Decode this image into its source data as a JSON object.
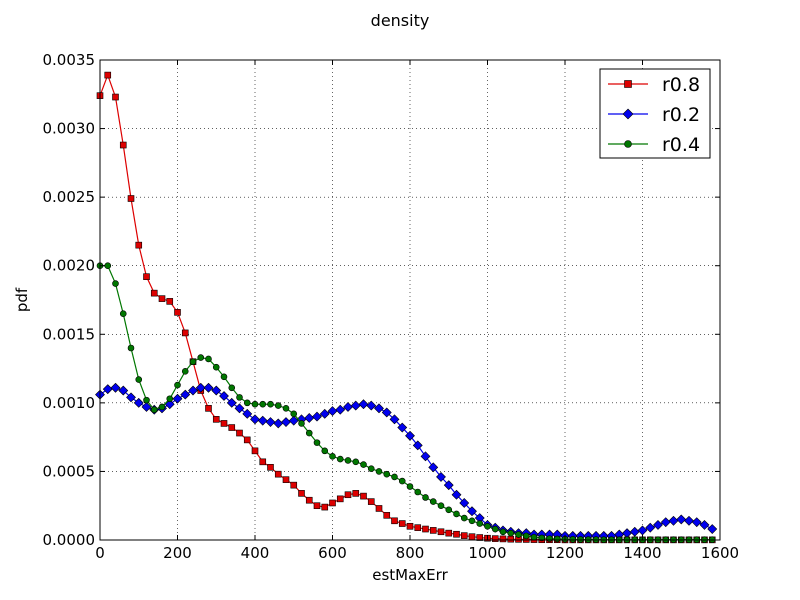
{
  "chart_data": {
    "type": "line",
    "title": "density",
    "xlabel": "estMaxErr",
    "ylabel": "pdf",
    "xlim": [
      0,
      1600
    ],
    "ylim": [
      0,
      0.0035
    ],
    "xticks": [
      0,
      200,
      400,
      600,
      800,
      1000,
      1200,
      1400,
      1600
    ],
    "xtick_labels": [
      "0",
      "200",
      "400",
      "600",
      "800",
      "1000",
      "1200",
      "1400",
      "1600"
    ],
    "yticks": [
      0,
      0.0005,
      0.001,
      0.0015,
      0.002,
      0.0025,
      0.003,
      0.0035
    ],
    "ytick_labels": [
      "0.0000",
      "0.0005",
      "0.0010",
      "0.0015",
      "0.0020",
      "0.0025",
      "0.0030",
      "0.0035"
    ],
    "grid": true,
    "legend_position": "top-right",
    "series": [
      {
        "name": "r0.8",
        "color": "#dd0000",
        "marker": "square",
        "x": [
          0,
          20,
          40,
          60,
          80,
          100,
          120,
          140,
          160,
          180,
          200,
          220,
          240,
          260,
          280,
          300,
          320,
          340,
          360,
          380,
          400,
          420,
          440,
          460,
          480,
          500,
          520,
          540,
          560,
          580,
          600,
          620,
          640,
          660,
          680,
          700,
          720,
          740,
          760,
          780,
          800,
          820,
          840,
          860,
          880,
          900,
          920,
          940,
          960,
          980,
          1000,
          1020,
          1040,
          1060,
          1080,
          1100,
          1120,
          1140,
          1160,
          1180,
          1200,
          1220,
          1240,
          1260,
          1280,
          1300,
          1320,
          1340,
          1360,
          1380,
          1400,
          1420,
          1440,
          1460,
          1480,
          1500,
          1520,
          1540,
          1560,
          1580
        ],
        "y": [
          0.00324,
          0.00339,
          0.00323,
          0.00288,
          0.00249,
          0.00215,
          0.00192,
          0.0018,
          0.00176,
          0.00174,
          0.00166,
          0.00151,
          0.0013,
          0.00109,
          0.00096,
          0.00088,
          0.00085,
          0.00082,
          0.00078,
          0.00073,
          0.00065,
          0.00057,
          0.00053,
          0.00048,
          0.00044,
          0.0004,
          0.00034,
          0.00029,
          0.00025,
          0.00024,
          0.00027,
          0.0003,
          0.00033,
          0.00034,
          0.00032,
          0.00028,
          0.00023,
          0.00018,
          0.00014,
          0.00012,
          0.0001,
          9e-05,
          8e-05,
          7e-05,
          6e-05,
          5e-05,
          4.2e-05,
          3.2e-05,
          2.4e-05,
          1.8e-05,
          1.3e-05,
          1e-05,
          8e-06,
          6e-06,
          5e-06,
          4e-06,
          3e-06,
          2e-06,
          2e-06,
          2e-06,
          1e-06,
          1e-06,
          1e-06,
          1e-06,
          1e-06,
          1e-06,
          1e-06,
          1e-06,
          1e-06,
          1e-06,
          1e-06,
          1e-06,
          1e-06,
          1e-06,
          1e-06,
          1e-06,
          1e-06,
          1e-06,
          1e-06,
          1e-06
        ]
      },
      {
        "name": "r0.2",
        "color": "#0000ee",
        "marker": "diamond",
        "x": [
          0,
          20,
          40,
          60,
          80,
          100,
          120,
          140,
          160,
          180,
          200,
          220,
          240,
          260,
          280,
          300,
          320,
          340,
          360,
          380,
          400,
          420,
          440,
          460,
          480,
          500,
          520,
          540,
          560,
          580,
          600,
          620,
          640,
          660,
          680,
          700,
          720,
          740,
          760,
          780,
          800,
          820,
          840,
          860,
          880,
          900,
          920,
          940,
          960,
          980,
          1000,
          1020,
          1040,
          1060,
          1080,
          1100,
          1120,
          1140,
          1160,
          1180,
          1200,
          1220,
          1240,
          1260,
          1280,
          1300,
          1320,
          1340,
          1360,
          1380,
          1400,
          1420,
          1440,
          1460,
          1480,
          1500,
          1520,
          1540,
          1560,
          1580
        ],
        "y": [
          0.00106,
          0.0011,
          0.00111,
          0.00109,
          0.00104,
          0.001,
          0.00097,
          0.00095,
          0.00096,
          0.00099,
          0.00103,
          0.00106,
          0.00109,
          0.00111,
          0.00111,
          0.00109,
          0.00105,
          0.001,
          0.00096,
          0.00092,
          0.00088,
          0.00087,
          0.00086,
          0.00085,
          0.00086,
          0.00087,
          0.00088,
          0.00089,
          0.0009,
          0.00092,
          0.00094,
          0.00095,
          0.00097,
          0.00098,
          0.00099,
          0.00098,
          0.00096,
          0.00093,
          0.00088,
          0.00082,
          0.00076,
          0.00069,
          0.00061,
          0.00053,
          0.00046,
          0.0004,
          0.00033,
          0.00027,
          0.00021,
          0.00016,
          0.00011,
          9e-05,
          7e-05,
          6e-05,
          5e-05,
          5e-05,
          4e-05,
          4e-05,
          4e-05,
          4e-05,
          3e-05,
          3e-05,
          3e-05,
          3e-05,
          3e-05,
          3e-05,
          3e-05,
          4e-05,
          5e-05,
          6e-05,
          7e-05,
          9e-05,
          0.00011,
          0.00013,
          0.00014,
          0.00015,
          0.00014,
          0.00013,
          0.00011,
          8e-05
        ]
      },
      {
        "name": "r0.4",
        "color": "#007700",
        "marker": "circle",
        "x": [
          0,
          20,
          40,
          60,
          80,
          100,
          120,
          140,
          160,
          180,
          200,
          220,
          240,
          260,
          280,
          300,
          320,
          340,
          360,
          380,
          400,
          420,
          440,
          460,
          480,
          500,
          520,
          540,
          560,
          580,
          600,
          620,
          640,
          660,
          680,
          700,
          720,
          740,
          760,
          780,
          800,
          820,
          840,
          860,
          880,
          900,
          920,
          940,
          960,
          980,
          1000,
          1020,
          1040,
          1060,
          1080,
          1100,
          1120,
          1140,
          1160,
          1180,
          1200,
          1220,
          1240,
          1260,
          1280,
          1300,
          1320,
          1340,
          1360,
          1380,
          1400,
          1420,
          1440,
          1460,
          1480,
          1500,
          1520,
          1540,
          1560,
          1580
        ],
        "y": [
          0.002,
          0.002,
          0.00187,
          0.00165,
          0.0014,
          0.00117,
          0.00102,
          0.00095,
          0.00097,
          0.00103,
          0.00113,
          0.00123,
          0.0013,
          0.00133,
          0.00132,
          0.00126,
          0.00119,
          0.00111,
          0.00104,
          0.001,
          0.00099,
          0.00099,
          0.00099,
          0.00098,
          0.00096,
          0.00092,
          0.00085,
          0.00078,
          0.00071,
          0.00065,
          0.00061,
          0.00059,
          0.00058,
          0.00057,
          0.00055,
          0.00052,
          0.0005,
          0.00048,
          0.00046,
          0.00043,
          0.00039,
          0.00035,
          0.00031,
          0.00028,
          0.00025,
          0.00022,
          0.00019,
          0.00016,
          0.00014,
          0.00012,
          0.0001,
          8e-05,
          6e-05,
          5e-05,
          4e-05,
          3e-05,
          2e-05,
          1.5e-05,
          1e-05,
          8e-06,
          6e-06,
          5e-06,
          4e-06,
          3e-06,
          3e-06,
          2e-06,
          2e-06,
          2e-06,
          2e-06,
          2e-06,
          2e-06,
          2e-06,
          2e-06,
          2e-06,
          2e-06,
          2e-06,
          2e-06,
          2e-06,
          2e-06,
          2e-06
        ]
      }
    ]
  }
}
